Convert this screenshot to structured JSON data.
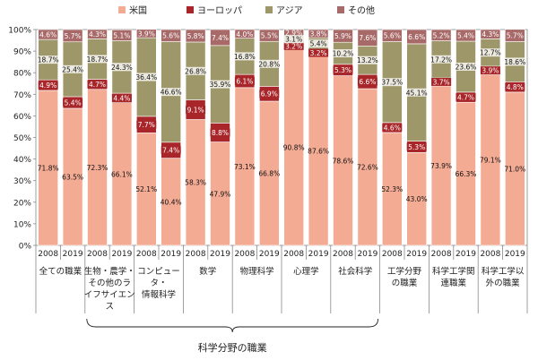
{
  "chart_data": {
    "type": "bar",
    "stacked": true,
    "title": "",
    "xlabel": "",
    "ylabel": "",
    "ylim": [
      0,
      100
    ],
    "y_ticks": [
      "0%",
      "10%",
      "20%",
      "30%",
      "40%",
      "50%",
      "60%",
      "70%",
      "80%",
      "90%",
      "100%"
    ],
    "legend_position": "top",
    "grid": false,
    "x": [
      "2008",
      "2019",
      "2008",
      "2019",
      "2008",
      "2019",
      "2008",
      "2019",
      "2008",
      "2019",
      "2008",
      "2019",
      "2008",
      "2019",
      "2008",
      "2019",
      "2008",
      "2019",
      "2008",
      "2019"
    ],
    "groups": [
      "全ての職業",
      "生物・農学・その他のライフサイエンス",
      "コンピュータ・情報科学",
      "数学",
      "物理科学",
      "心理学",
      "社会科学",
      "工学分野の職業",
      "科学工学関連職業",
      "科学工学以外の職業"
    ],
    "group_label_lines": [
      [
        "全ての職業"
      ],
      [
        "生物・農学・",
        "その他のラ",
        "イフサイエン",
        "ス"
      ],
      [
        "コンピュー",
        "タ・",
        "情報科学"
      ],
      [
        "数学"
      ],
      [
        "物理科学"
      ],
      [
        "心理学"
      ],
      [
        "社会科学"
      ],
      [
        "工学分野",
        "の職業"
      ],
      [
        "科学工学関",
        "連職業"
      ],
      [
        "科学工学以",
        "外の職業"
      ]
    ],
    "bracket_label": "科学分野の職業",
    "value_labels_suffix": "%",
    "series": [
      {
        "name": "米国",
        "color": "#f4ab94",
        "values": [
          71.8,
          63.5,
          72.3,
          66.1,
          52.1,
          40.4,
          58.3,
          47.9,
          73.1,
          66.8,
          90.8,
          87.6,
          78.6,
          72.6,
          52.3,
          43.0,
          73.9,
          66.3,
          79.1,
          71.0
        ]
      },
      {
        "name": "ヨーロッパ",
        "color": "#a8262a",
        "values": [
          4.9,
          5.4,
          4.7,
          4.4,
          7.7,
          7.4,
          9.1,
          8.8,
          6.1,
          6.9,
          3.2,
          3.2,
          5.3,
          6.6,
          4.6,
          5.3,
          3.7,
          4.7,
          3.9,
          4.8
        ]
      },
      {
        "name": "アジア",
        "color": "#9e9769",
        "values": [
          18.7,
          25.4,
          18.7,
          24.3,
          36.4,
          46.6,
          26.8,
          35.9,
          16.8,
          20.8,
          3.1,
          5.4,
          10.2,
          13.2,
          37.5,
          45.1,
          17.2,
          23.6,
          12.7,
          18.6
        ]
      },
      {
        "name": "その他",
        "color": "#a86a68",
        "values": [
          4.6,
          5.7,
          4.3,
          5.1,
          3.9,
          5.6,
          5.8,
          7.4,
          4.0,
          5.5,
          2.9,
          3.8,
          5.9,
          7.6,
          5.6,
          6.6,
          5.2,
          5.4,
          4.3,
          5.7
        ]
      }
    ]
  }
}
